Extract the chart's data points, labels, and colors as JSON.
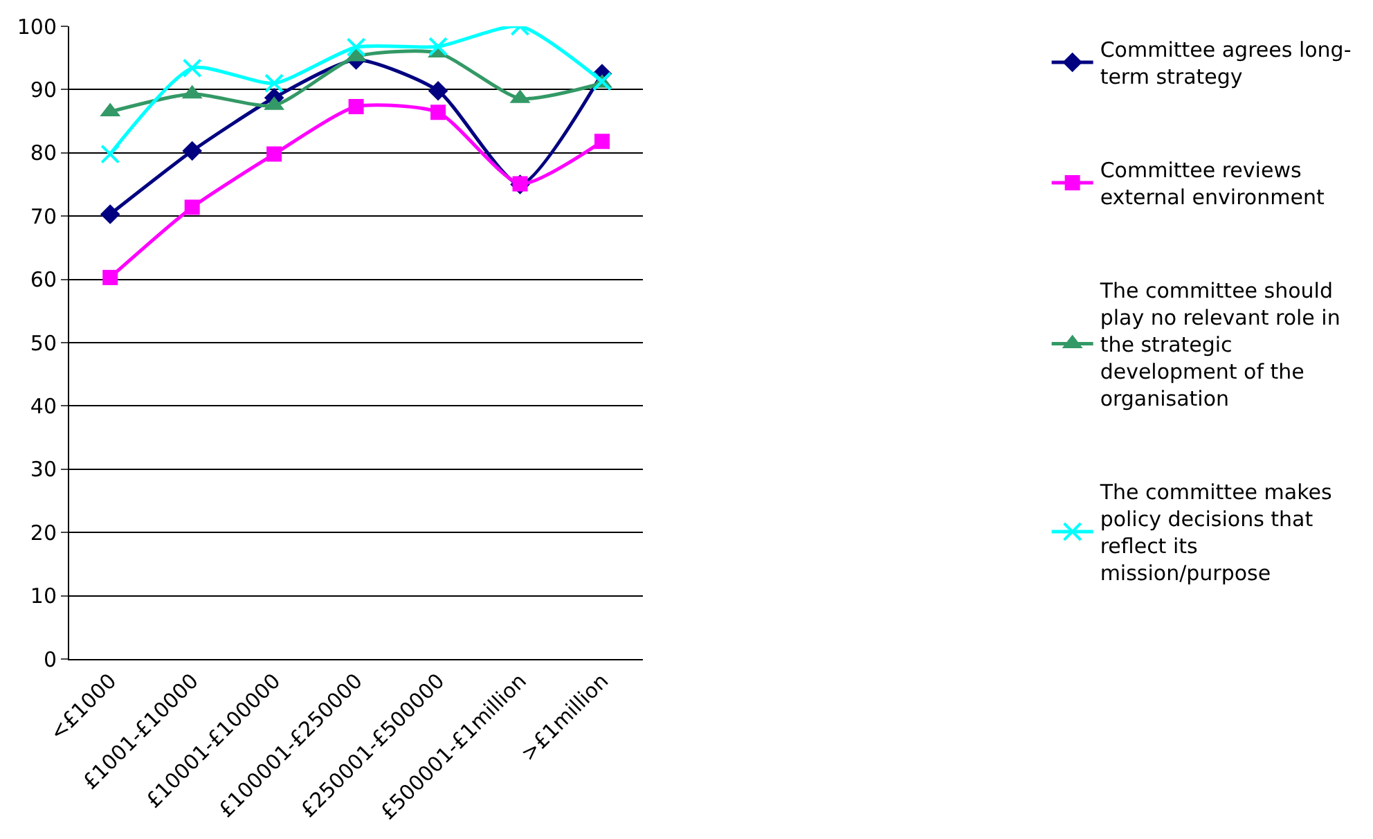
{
  "chart_data": {
    "type": "line",
    "categories": [
      "<£1000",
      "£1001-£10000",
      "£10001-£100000",
      "£100001-£250000",
      "£250001-£500000",
      "£500001-£1million",
      ">£1million"
    ],
    "series": [
      {
        "name": "Committee agrees long-term strategy",
        "color": "#000080",
        "marker": "diamond",
        "values": [
          70.3,
          80.3,
          88.7,
          94.7,
          89.8,
          75,
          92.5
        ]
      },
      {
        "name": "Committee reviews external environment",
        "color": "#ff00ff",
        "marker": "square",
        "values": [
          60.3,
          71.4,
          79.8,
          87.3,
          86.4,
          75.1,
          81.8
        ]
      },
      {
        "name": "The committee should play no relevant role in the strategic development of the organisation",
        "color": "#339966",
        "marker": "triangle",
        "values": [
          86.5,
          89.3,
          87.5,
          95.2,
          95.8,
          88.6,
          91
        ]
      },
      {
        "name": "The committee makes policy decisions that reflect its mission/purpose",
        "color": "#00ffff",
        "marker": "cross",
        "values": [
          79.8,
          93.4,
          91,
          96.7,
          96.8,
          100,
          91.3
        ]
      }
    ],
    "ylim": [
      0,
      100
    ],
    "yticks": [
      0,
      10,
      20,
      30,
      40,
      50,
      60,
      70,
      80,
      90,
      100
    ],
    "grid": "y",
    "legend": "right",
    "line_style": "solid"
  }
}
